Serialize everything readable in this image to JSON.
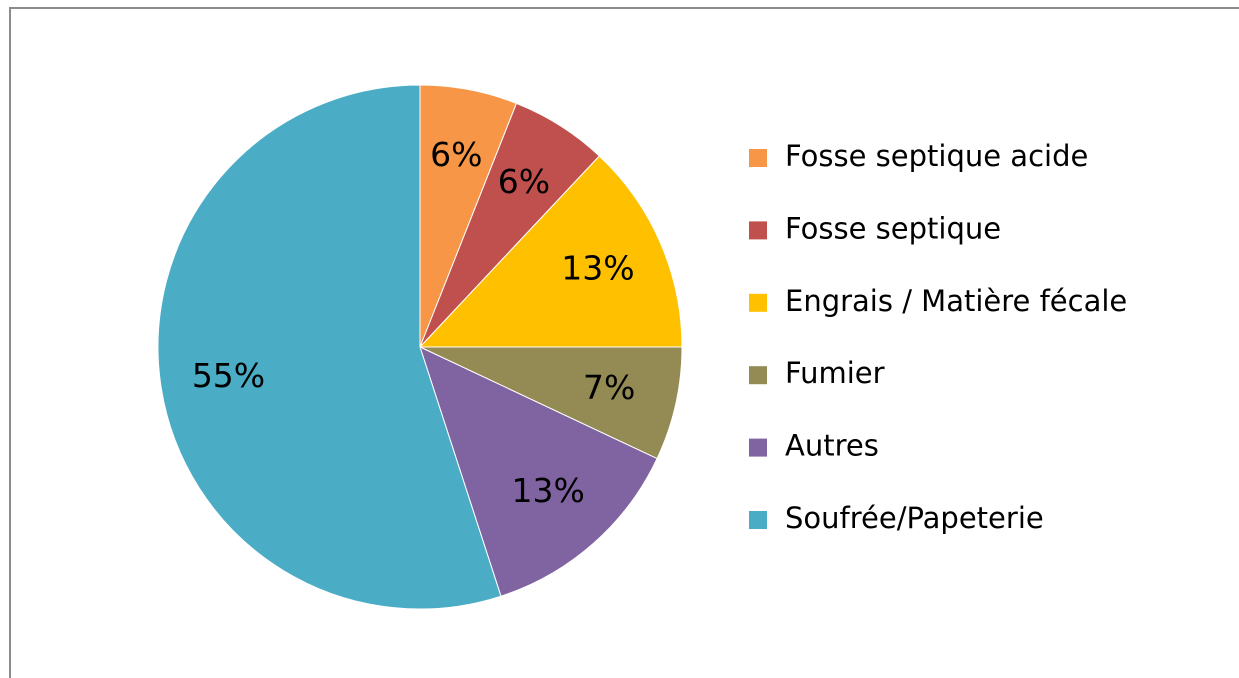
{
  "chart_data": {
    "type": "pie",
    "categories": [
      "Fosse septique acide",
      "Fosse septique",
      "Engrais / Matière fécale",
      "Fumier",
      "Autres",
      "Soufrée/Papeterie"
    ],
    "values": [
      6,
      6,
      13,
      7,
      13,
      55
    ],
    "value_labels": [
      "6%",
      "6%",
      "13%",
      "7%",
      "13%",
      "55%"
    ],
    "colors": [
      "#f79646",
      "#c0504d",
      "#ffc000",
      "#948a54",
      "#8064a2",
      "#4bacc6"
    ],
    "legend": "right"
  }
}
